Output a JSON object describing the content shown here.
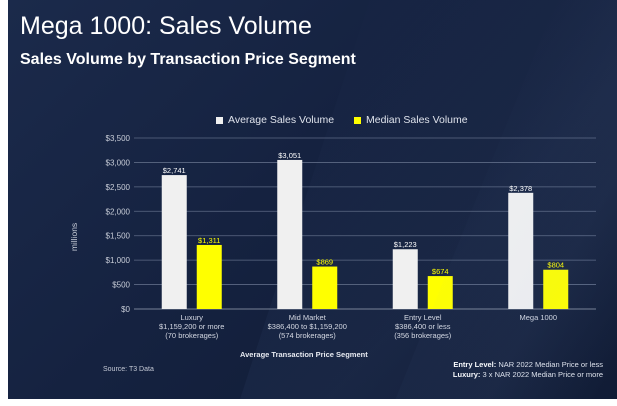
{
  "header": {
    "title": "Mega 1000: Sales Volume",
    "subtitle": "Sales Volume by Transaction Price Segment"
  },
  "footer": {
    "source": "Source: T3 Data",
    "notes": [
      {
        "label": "Entry Level:",
        "text": "NAR 2022 Median Price or less"
      },
      {
        "label": "Luxury:",
        "text": "3 x NAR 2022 Median Price or more"
      }
    ]
  },
  "chart_data": {
    "type": "bar",
    "title": "",
    "xlabel": "Average Transaction Price Segment",
    "ylabel": "millions",
    "ylim": [
      0,
      3500
    ],
    "yticks": [
      0,
      500,
      1000,
      1500,
      2000,
      2500,
      3000,
      3500
    ],
    "ytick_labels": [
      "$0",
      "$500",
      "$1,000",
      "$1,500",
      "$2,000",
      "$2,500",
      "$3,000",
      "$3,500"
    ],
    "grid": true,
    "legend_position": "top",
    "categories": [
      [
        "Luxury",
        "$1,159,200 or more",
        "(70 brokerages)"
      ],
      [
        "Mid Market",
        "$386,400 to $1,159,200",
        "(574 brokerages)"
      ],
      [
        "Entry Level",
        "$386,400 or less",
        "(356 brokerages)"
      ],
      [
        "Mega 1000"
      ]
    ],
    "series": [
      {
        "name": "Average Sales Volume",
        "color": "#f0f0f0",
        "values": [
          2741,
          3051,
          1223,
          2378
        ],
        "labels": [
          "$2,741",
          "$3,051",
          "$1,223",
          "$2,378"
        ]
      },
      {
        "name": "Median Sales Volume",
        "color": "#ffff00",
        "values": [
          1311,
          869,
          674,
          804
        ],
        "labels": [
          "$1,311",
          "$869",
          "$674",
          "$804"
        ]
      }
    ]
  }
}
